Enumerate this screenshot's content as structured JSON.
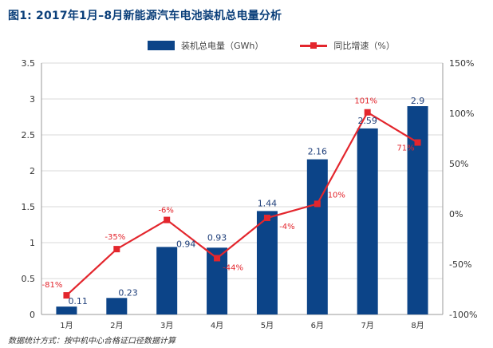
{
  "title": "图1: 2017年1月–8月新能源汽车电池装机总电量分析",
  "source_note": "数据统计方式：按中机中心合格证口径数据计算",
  "colors": {
    "bar": "#0c4488",
    "line": "#e3262d",
    "title": "#0b3f7a",
    "grid": "#d9d9d9",
    "bar_label": "#1f3f7a"
  },
  "chart_data": {
    "type": "bar",
    "title": "图1: 2017年1月–8月新能源汽车电池装机总电量分析",
    "categories": [
      "1月",
      "2月",
      "3月",
      "4月",
      "5月",
      "6月",
      "7月",
      "8月"
    ],
    "series": [
      {
        "name": "装机总电量（GWh）",
        "type": "bar",
        "axis": "left",
        "values": [
          0.11,
          0.23,
          0.94,
          0.93,
          1.44,
          2.16,
          2.59,
          2.9
        ],
        "labels": [
          "0.11",
          "0.23",
          "0.94",
          "0.93",
          "1.44",
          "2.16",
          "2.59",
          "2.9"
        ]
      },
      {
        "name": "同比增速（%）",
        "type": "line",
        "axis": "right",
        "values": [
          -81,
          -35,
          -6,
          -44,
          -4,
          10,
          101,
          71
        ],
        "labels": [
          "-81%",
          "-35%",
          "-6%",
          "-44%",
          "-4%",
          "10%",
          "101%",
          "71%"
        ]
      }
    ],
    "y_left": {
      "min": 0,
      "max": 3.5,
      "ticks": [
        "0",
        "0.5",
        "1",
        "1.5",
        "2",
        "2.5",
        "3",
        "3.5"
      ]
    },
    "y_right": {
      "min": -100,
      "max": 150,
      "ticks": [
        "-100%",
        "-50%",
        "0%",
        "50%",
        "100%",
        "150%"
      ]
    },
    "grid": true,
    "legend_position": "top"
  }
}
